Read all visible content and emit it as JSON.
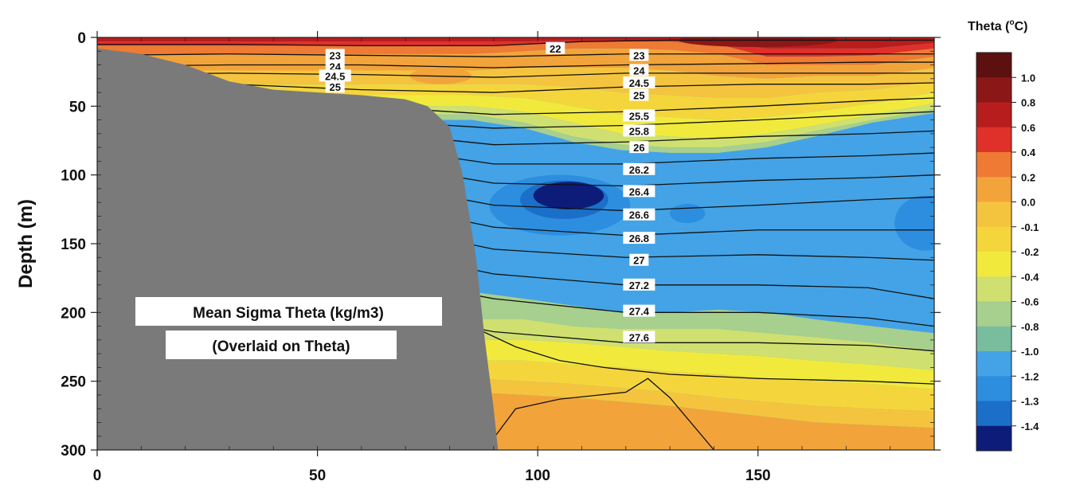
{
  "chart_data": {
    "type": "heatmap",
    "ylabel": "Depth (m)",
    "xlabel": "",
    "xlim": [
      0,
      190
    ],
    "ylim": [
      0,
      300
    ],
    "y_inverted": true,
    "x_ticks": [
      "0",
      "50",
      "100",
      "150"
    ],
    "y_ticks": [
      "0",
      "50",
      "100",
      "150",
      "200",
      "250",
      "300"
    ],
    "colorbar": {
      "title": "Theta (oC)",
      "title_main": "Theta (",
      "title_sup": "o",
      "title_end": "C)",
      "levels": [
        "1.0",
        "0.8",
        "0.6",
        "0.4",
        "0.2",
        "0.0",
        "-0.1",
        "-0.2",
        "-0.4",
        "-0.6",
        "-0.8",
        "-1.0",
        "-1.2",
        "-1.3",
        "-1.4"
      ],
      "colors": [
        "#5c1010",
        "#8c1717",
        "#b81d1d",
        "#e0302a",
        "#ee7a33",
        "#f2a43a",
        "#f5c43f",
        "#f4d63c",
        "#f1ea3d",
        "#cfe070",
        "#a7cf8d",
        "#79bd9f",
        "#43a3e6",
        "#2d8ee0",
        "#1b6fc8",
        "#0d1c78"
      ]
    },
    "bands": [
      {
        "theta": "0.6",
        "color": "#b81d1d",
        "top": [
          0,
          0,
          0,
          0,
          0,
          0,
          0,
          0,
          0,
          0
        ],
        "bottom": [
          3,
          3,
          2,
          2,
          2,
          3,
          8,
          8,
          8,
          4
        ]
      },
      {
        "theta": "0.4",
        "color": "#e0302a",
        "top": [
          3,
          3,
          2,
          2,
          2,
          3,
          8,
          8,
          8,
          4
        ],
        "bottom": [
          6,
          5,
          3,
          3,
          3,
          5,
          14,
          14,
          13,
          8
        ]
      },
      {
        "theta": "0.2",
        "color": "#ee7a33",
        "top": [
          6,
          5,
          3,
          3,
          3,
          5,
          14,
          14,
          13,
          8
        ],
        "bottom": [
          12,
          10,
          8,
          8,
          9,
          12,
          20,
          20,
          20,
          14
        ]
      },
      {
        "theta": "0.0",
        "color": "#f2a43a",
        "top": [
          12,
          10,
          8,
          8,
          9,
          12,
          20,
          20,
          20,
          14
        ],
        "bottom": [
          24,
          22,
          22,
          22,
          24,
          28,
          30,
          28,
          28,
          22
        ]
      },
      {
        "theta": "-0.1",
        "color": "#f5c43f",
        "top": [
          24,
          22,
          22,
          22,
          24,
          28,
          30,
          28,
          28,
          22
        ],
        "bottom": [
          34,
          34,
          36,
          40,
          42,
          44,
          44,
          40,
          38,
          32
        ]
      },
      {
        "theta": "-0.2",
        "color": "#f4d63c",
        "top": [
          34,
          34,
          36,
          40,
          42,
          44,
          44,
          40,
          38,
          32
        ],
        "bottom": [
          42,
          44,
          50,
          56,
          58,
          60,
          58,
          54,
          48,
          40
        ]
      },
      {
        "theta": "-0.4",
        "color": "#f1ea3d",
        "top": [
          42,
          44,
          50,
          56,
          58,
          60,
          58,
          54,
          48,
          40
        ],
        "bottom": [
          50,
          54,
          62,
          70,
          72,
          74,
          70,
          64,
          56,
          48
        ]
      },
      {
        "theta": "-0.6",
        "color": "#cfe070",
        "top": [
          50,
          54,
          62,
          70,
          72,
          74,
          70,
          64,
          56,
          48
        ],
        "bottom": [
          56,
          62,
          72,
          78,
          80,
          80,
          76,
          68,
          60,
          52
        ]
      },
      {
        "theta": "-0.8",
        "color": "#a7cf8d",
        "top": [
          56,
          62,
          72,
          78,
          80,
          80,
          76,
          68,
          60,
          52
        ],
        "bottom": [
          60,
          66,
          76,
          82,
          84,
          84,
          80,
          72,
          62,
          55
        ]
      },
      {
        "theta": "-1.0",
        "color": "#43a3e6",
        "top": [
          60,
          66,
          76,
          82,
          84,
          84,
          80,
          72,
          62,
          55
        ],
        "bottom": [
          185,
          190,
          195,
          200,
          200,
          198,
          200,
          205,
          210,
          215
        ]
      },
      {
        "theta": "-0.8",
        "color": "#a7cf8d",
        "top": [
          185,
          190,
          195,
          200,
          200,
          198,
          200,
          205,
          210,
          215
        ],
        "bottom": [
          205,
          205,
          210,
          212,
          212,
          212,
          215,
          218,
          222,
          228
        ]
      },
      {
        "theta": "-0.6",
        "color": "#cfe070",
        "top": [
          205,
          205,
          210,
          212,
          212,
          212,
          215,
          218,
          222,
          228
        ],
        "bottom": [
          220,
          220,
          222,
          225,
          228,
          230,
          232,
          235,
          238,
          242
        ]
      },
      {
        "theta": "-0.4",
        "color": "#f1ea3d",
        "top": [
          220,
          220,
          222,
          225,
          228,
          230,
          232,
          235,
          238,
          242
        ],
        "bottom": [
          235,
          235,
          238,
          240,
          243,
          245,
          248,
          250,
          252,
          256
        ]
      },
      {
        "theta": "-0.2",
        "color": "#f4d63c",
        "top": [
          235,
          235,
          238,
          240,
          243,
          245,
          248,
          250,
          252,
          256
        ],
        "bottom": [
          248,
          250,
          252,
          255,
          258,
          262,
          265,
          268,
          270,
          272
        ]
      },
      {
        "theta": "-0.1",
        "color": "#f5c43f",
        "top": [
          248,
          250,
          252,
          255,
          258,
          262,
          265,
          268,
          270,
          272
        ],
        "bottom": [
          258,
          260,
          262,
          265,
          268,
          272,
          276,
          280,
          282,
          284
        ]
      },
      {
        "theta": "0.0",
        "color": "#f2a43a",
        "top": [
          258,
          260,
          262,
          265,
          268,
          272,
          276,
          280,
          282,
          284
        ],
        "bottom": [
          300,
          300,
          300,
          300,
          300,
          300,
          300,
          300,
          300,
          300
        ]
      }
    ],
    "band_x": [
      85,
      97,
      108,
      119,
      130,
      141,
      152,
      163,
      176,
      190
    ],
    "patches": [
      {
        "theta": "-1.2",
        "color": "#2d8ee0",
        "cx": 105,
        "cy": 122,
        "rx": 16,
        "ry": 22
      },
      {
        "theta": "-1.3",
        "color": "#1b6fc8",
        "cx": 106,
        "cy": 118,
        "rx": 10,
        "ry": 14
      },
      {
        "theta": "-1.4",
        "color": "#0d1c78",
        "cx": 107,
        "cy": 115,
        "rx": 8,
        "ry": 10
      },
      {
        "theta": "-1.2",
        "color": "#2d8ee0",
        "cx": 134,
        "cy": 128,
        "rx": 4,
        "ry": 7
      },
      {
        "theta": "-1.2",
        "color": "#2d8ee0",
        "cx": 188,
        "cy": 135,
        "rx": 7,
        "ry": 20
      },
      {
        "theta": "0.8",
        "color": "#8c1717",
        "cx": 150,
        "cy": 2,
        "rx": 18,
        "ry": 5
      },
      {
        "theta": "0.0",
        "color": "#f2a43a",
        "cx": 78,
        "cy": 28,
        "rx": 7,
        "ry": 6
      }
    ],
    "shelf": {
      "x": [
        0,
        10,
        20,
        30,
        40,
        50,
        60,
        70,
        75,
        80,
        83,
        86,
        88,
        90,
        91
      ],
      "depth": [
        8,
        12,
        20,
        32,
        38,
        40,
        42,
        45,
        50,
        65,
        100,
        160,
        220,
        270,
        300
      ]
    },
    "contours": [
      {
        "label": "22",
        "x": [
          0,
          30,
          60,
          90,
          110,
          130,
          160,
          190
        ],
        "y": [
          5,
          5,
          6,
          6,
          3,
          2,
          2,
          2
        ]
      },
      {
        "label": "23",
        "x": [
          0,
          30,
          60,
          90,
          120,
          150,
          175,
          190
        ],
        "y": [
          13,
          12,
          13,
          14,
          12,
          12,
          12,
          12
        ]
      },
      {
        "label": "24",
        "x": [
          0,
          30,
          60,
          90,
          120,
          150,
          175,
          190
        ],
        "y": [
          21,
          20,
          20,
          22,
          20,
          19,
          18,
          18
        ]
      },
      {
        "label": "24.5",
        "x": [
          0,
          30,
          60,
          90,
          120,
          150,
          175,
          190
        ],
        "y": [
          27,
          26,
          27,
          29,
          26,
          26,
          26,
          26
        ]
      },
      {
        "label": "25",
        "x": [
          0,
          30,
          60,
          90,
          120,
          150,
          175,
          190
        ],
        "y": [
          33,
          34,
          38,
          40,
          36,
          34,
          34,
          33
        ]
      },
      {
        "label": "25.5",
        "x": [
          0,
          30,
          60,
          90,
          120,
          150,
          175,
          190
        ],
        "y": [
          42,
          44,
          50,
          56,
          54,
          50,
          46,
          44
        ]
      },
      {
        "label": "25.8",
        "x": [
          0,
          30,
          60,
          90,
          120,
          150,
          175,
          190
        ],
        "y": [
          48,
          52,
          60,
          66,
          64,
          60,
          56,
          54
        ]
      },
      {
        "label": "26",
        "x": [
          0,
          30,
          60,
          90,
          120,
          150,
          175,
          190
        ],
        "y": [
          54,
          58,
          68,
          78,
          76,
          72,
          70,
          68
        ]
      },
      {
        "label": "26.2",
        "x": [
          0,
          30,
          60,
          90,
          120,
          150,
          175,
          190
        ],
        "y": [
          62,
          66,
          78,
          92,
          92,
          88,
          86,
          84
        ]
      },
      {
        "label": "26.4",
        "x": [
          0,
          30,
          60,
          90,
          120,
          150,
          175,
          190
        ],
        "y": [
          70,
          76,
          90,
          106,
          108,
          104,
          102,
          100
        ]
      },
      {
        "label": "26.6",
        "x": [
          0,
          30,
          60,
          90,
          120,
          150,
          175,
          190
        ],
        "y": [
          80,
          86,
          104,
          122,
          126,
          122,
          118,
          116
        ]
      },
      {
        "label": "26.8",
        "x": [
          0,
          30,
          60,
          90,
          120,
          150,
          175,
          190
        ],
        "y": [
          92,
          98,
          118,
          138,
          144,
          140,
          140,
          140
        ]
      },
      {
        "label": "27",
        "x": [
          0,
          30,
          60,
          90,
          120,
          150,
          175,
          190
        ],
        "y": [
          108,
          114,
          134,
          154,
          160,
          158,
          160,
          162
        ]
      },
      {
        "label": "27.2",
        "x": [
          0,
          30,
          60,
          90,
          120,
          150,
          175,
          190
        ],
        "y": [
          126,
          132,
          152,
          172,
          180,
          180,
          182,
          190
        ]
      },
      {
        "label": "27.4",
        "x": [
          0,
          30,
          60,
          90,
          120,
          150,
          175,
          190
        ],
        "y": [
          146,
          152,
          172,
          190,
          200,
          200,
          204,
          210
        ]
      },
      {
        "label": "27.6",
        "x": [
          0,
          30,
          60,
          90,
          120,
          150,
          175,
          190
        ],
        "y": [
          168,
          174,
          196,
          214,
          222,
          222,
          224,
          228
        ]
      },
      {
        "label": "",
        "x": [
          85,
          95,
          105,
          115,
          130,
          150,
          175,
          190
        ],
        "y": [
          210,
          225,
          235,
          240,
          245,
          248,
          250,
          252
        ]
      },
      {
        "label": "",
        "x": [
          88,
          95,
          105,
          120,
          125,
          130,
          140
        ],
        "y": [
          300,
          270,
          263,
          258,
          248,
          262,
          300
        ]
      }
    ],
    "contour_labels_mid": [
      {
        "text": "22",
        "x": 104,
        "y": 8
      },
      {
        "text": "23",
        "x": 123,
        "y": 13
      },
      {
        "text": "24",
        "x": 123,
        "y": 24
      },
      {
        "text": "24.5",
        "x": 123,
        "y": 33
      },
      {
        "text": "25",
        "x": 123,
        "y": 42
      },
      {
        "text": "25.5",
        "x": 123,
        "y": 57
      },
      {
        "text": "25.8",
        "x": 123,
        "y": 68
      },
      {
        "text": "26",
        "x": 123,
        "y": 80
      },
      {
        "text": "26.2",
        "x": 123,
        "y": 96
      },
      {
        "text": "26.4",
        "x": 123,
        "y": 112
      },
      {
        "text": "26.6",
        "x": 123,
        "y": 129
      },
      {
        "text": "26.8",
        "x": 123,
        "y": 146
      },
      {
        "text": "27",
        "x": 123,
        "y": 162
      },
      {
        "text": "27.2",
        "x": 123,
        "y": 180
      },
      {
        "text": "27.4",
        "x": 123,
        "y": 199
      },
      {
        "text": "27.6",
        "x": 123,
        "y": 218
      }
    ],
    "contour_labels_left": [
      {
        "text": "23",
        "x": 54,
        "y": 13
      },
      {
        "text": "24",
        "x": 54,
        "y": 21
      },
      {
        "text": "24.5",
        "x": 54,
        "y": 28
      },
      {
        "text": "25",
        "x": 54,
        "y": 36
      }
    ],
    "annotation": {
      "line1": "Mean Sigma Theta (kg/m3)",
      "line2": "(Overlaid on Theta)"
    }
  }
}
